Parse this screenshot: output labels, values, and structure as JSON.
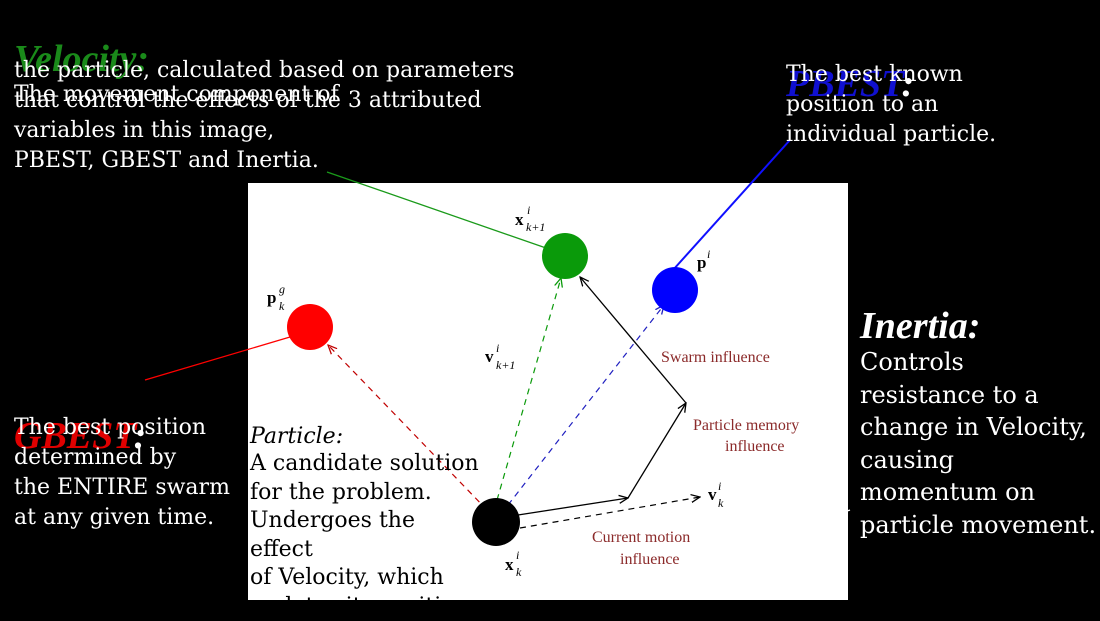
{
  "velocity": {
    "heading": "Velocity:",
    "color": "#1a8a1a",
    "line1": "The movement component of",
    "rest": "the particle, calculated based on parameters\nthat control the effects of the 3 attributed\nvariables in this image,\nPBEST, GBEST and Inertia."
  },
  "pbest": {
    "heading": "PBEST",
    "colon": ":",
    "color": "#1010d0",
    "text": "The best known\nposition to an\nindividual particle."
  },
  "inertia": {
    "heading": "Inertia:",
    "text": "Controls\nresistance to a\nchange in Velocity,\ncausing\nmomentum on\nparticle movement."
  },
  "gbest": {
    "heading": "GBEST",
    "colon": ":",
    "color": "#e00000",
    "text": "The best position\ndetermined by\nthe ENTIRE swarm\nat any given time."
  },
  "particle": {
    "heading": "Particle:",
    "text": "A candidate solution\nfor the problem.\nUndergoes the effect\nof Velocity, which\nupdates its position."
  },
  "diagram": {
    "labels": {
      "swarm_influence": "Swarm influence",
      "particle_memory_1": "Particle memory",
      "particle_memory_2": "influence",
      "current_motion_1": "Current motion",
      "current_motion_2": "influence"
    },
    "label_color": "#8b2a2a",
    "symbols": {
      "x_next": "x",
      "x_next_sup": "i",
      "x_next_sub": "k+1",
      "p_i": "p",
      "p_i_sup": "i",
      "p_g": "p",
      "p_g_sup": "g",
      "p_g_sub": "k",
      "v_next": "v",
      "v_next_sup": "i",
      "v_next_sub": "k+1",
      "v_k": "v",
      "v_k_sup": "i",
      "v_k_sub": "k",
      "x_k": "x",
      "x_k_sup": "i",
      "x_k_sub": "k"
    },
    "node_colors": {
      "gbest": "#ff0000",
      "pbest": "#0000ff",
      "next": "#0a9a0a",
      "particle": "#000000"
    }
  }
}
